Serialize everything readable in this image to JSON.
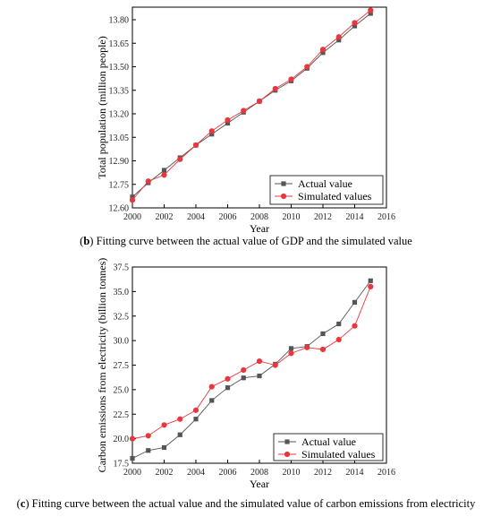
{
  "chart_data": [
    {
      "type": "line",
      "caption_letter": "b",
      "caption_text": "Fitting curve between the actual value of GDP and the simulated value",
      "xlabel": "Year",
      "ylabel": "Total population (million people)",
      "xlim": [
        2000,
        2016
      ],
      "ylim": [
        12.6,
        13.88
      ],
      "x_ticks": [
        "2000",
        "2002",
        "2004",
        "2006",
        "2008",
        "2010",
        "2012",
        "2014",
        "2016"
      ],
      "y_ticks": [
        "12.60",
        "12.75",
        "12.90",
        "13.05",
        "13.20",
        "13.35",
        "13.50",
        "13.65",
        "13.80"
      ],
      "legend_position": "bottom-right",
      "x": [
        2000,
        2001,
        2002,
        2003,
        2004,
        2005,
        2006,
        2007,
        2008,
        2009,
        2010,
        2011,
        2012,
        2013,
        2014,
        2015
      ],
      "series": [
        {
          "name": "Actual value",
          "color": "#555555",
          "marker": "square",
          "values": [
            12.67,
            12.76,
            12.84,
            12.92,
            13.0,
            13.07,
            13.14,
            13.21,
            13.28,
            13.35,
            13.41,
            13.49,
            13.59,
            13.67,
            13.76,
            13.84
          ]
        },
        {
          "name": "Simulated values",
          "color": "#e8383d",
          "marker": "circle",
          "values": [
            12.65,
            12.77,
            12.81,
            12.91,
            13.0,
            13.09,
            13.16,
            13.22,
            13.28,
            13.36,
            13.42,
            13.5,
            13.61,
            13.69,
            13.78,
            13.86
          ]
        }
      ]
    },
    {
      "type": "line",
      "caption_letter": "c",
      "caption_text": "Fitting curve between the actual value and the simulated value of carbon emissions from electricity",
      "xlabel": "Year",
      "ylabel": "Carbon emissions from electricity (billion tonnes)",
      "xlim": [
        2000,
        2016
      ],
      "ylim": [
        17.5,
        37.5
      ],
      "x_ticks": [
        "2000",
        "2002",
        "2004",
        "2006",
        "2008",
        "2010",
        "2012",
        "2014",
        "2016"
      ],
      "y_ticks": [
        "17.5",
        "20.0",
        "22.5",
        "25.0",
        "27.5",
        "30.0",
        "32.5",
        "35.0",
        "37.5"
      ],
      "legend_position": "bottom-right",
      "x": [
        2000,
        2001,
        2002,
        2003,
        2004,
        2005,
        2006,
        2007,
        2008,
        2009,
        2010,
        2011,
        2012,
        2013,
        2014,
        2015
      ],
      "series": [
        {
          "name": "Actual value",
          "color": "#555555",
          "marker": "square",
          "values": [
            18.0,
            18.8,
            19.1,
            20.4,
            22.0,
            23.9,
            25.2,
            26.2,
            26.4,
            27.6,
            29.2,
            29.4,
            30.7,
            31.7,
            33.9,
            36.1
          ]
        },
        {
          "name": "Simulated values",
          "color": "#e8383d",
          "marker": "circle",
          "values": [
            20.0,
            20.3,
            21.4,
            22.0,
            22.9,
            25.3,
            26.1,
            27.0,
            27.9,
            27.5,
            28.7,
            29.3,
            29.1,
            30.1,
            31.5,
            35.5
          ]
        }
      ]
    }
  ]
}
